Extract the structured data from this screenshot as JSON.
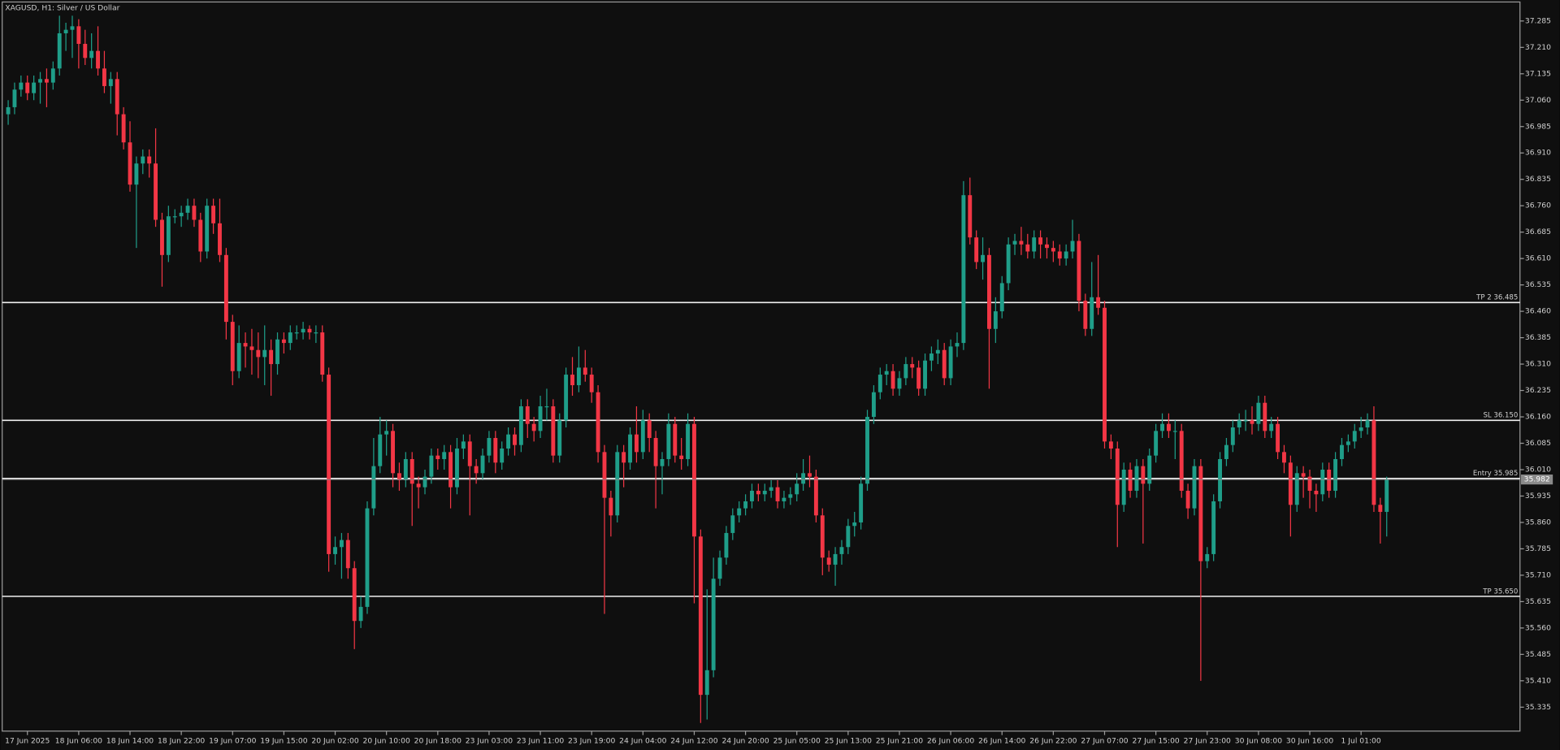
{
  "chart_data": {
    "type": "candlestick",
    "title": "XAGUSD, H1:  Silver / US Dollar",
    "up_color": "#1f9e89",
    "down_color": "#f23645",
    "categories": [
      null,
      null,
      null,
      "17 Jun 2025",
      null,
      null,
      null,
      null,
      null,
      null,
      null,
      "18 Jun 06:00",
      null,
      null,
      null,
      null,
      null,
      null,
      null,
      "18 Jun 14:00",
      null,
      null,
      null,
      null,
      null,
      null,
      null,
      "18 Jun 22:00",
      null,
      null,
      null,
      null,
      null,
      null,
      null,
      "19 Jun 07:00",
      null,
      null,
      null,
      null,
      null,
      null,
      null,
      "19 Jun 15:00",
      null,
      null,
      null,
      null,
      null,
      null,
      null,
      "20 Jun 02:00",
      null,
      null,
      null,
      null,
      null,
      null,
      null,
      "20 Jun 10:00",
      null,
      null,
      null,
      null,
      null,
      null,
      null,
      "20 Jun 18:00",
      null,
      null,
      null,
      null,
      null,
      null,
      null,
      "23 Jun 03:00",
      null,
      null,
      null,
      null,
      null,
      null,
      null,
      "23 Jun 11:00",
      null,
      null,
      null,
      null,
      null,
      null,
      null,
      "23 Jun 19:00",
      null,
      null,
      null,
      null,
      null,
      null,
      null,
      "24 Jun 04:00",
      null,
      null,
      null,
      null,
      null,
      null,
      null,
      "24 Jun 12:00",
      null,
      null,
      null,
      null,
      null,
      null,
      null,
      "24 Jun 20:00",
      null,
      null,
      null,
      null,
      null,
      null,
      null,
      "25 Jun 05:00",
      null,
      null,
      null,
      null,
      null,
      null,
      null,
      "25 Jun 13:00",
      null,
      null,
      null,
      null,
      null,
      null,
      null,
      "25 Jun 21:00",
      null,
      null,
      null,
      null,
      null,
      null,
      null,
      "26 Jun 06:00",
      null,
      null,
      null,
      null,
      null,
      null,
      null,
      "26 Jun 14:00",
      null,
      null,
      null,
      null,
      null,
      null,
      null,
      "26 Jun 22:00",
      null,
      null,
      null,
      null,
      null,
      null,
      null,
      "27 Jun 07:00",
      null,
      null,
      null,
      null,
      null,
      null,
      null,
      "27 Jun 15:00",
      null,
      null,
      null,
      null,
      null,
      null,
      null,
      "27 Jun 23:00",
      null,
      null,
      null,
      null,
      null,
      null,
      null,
      "30 Jun 08:00",
      null,
      null,
      null,
      null,
      null,
      null,
      null,
      "30 Jun 16:00",
      null,
      null,
      null,
      null,
      null,
      null,
      null,
      "1 Jul 01:00",
      null,
      null,
      null,
      null
    ],
    "open": [
      37.02,
      37.04,
      37.09,
      37.11,
      37.08,
      37.11,
      37.12,
      37.11,
      37.15,
      37.25,
      37.26,
      37.27,
      37.22,
      37.18,
      37.2,
      37.15,
      37.1,
      37.12,
      37.02,
      36.94,
      36.82,
      36.88,
      36.9,
      36.88,
      36.72,
      36.62,
      36.73,
      36.73,
      36.74,
      36.76,
      36.72,
      36.63,
      36.76,
      36.71,
      36.62,
      36.43,
      36.29,
      36.37,
      36.36,
      36.35,
      36.33,
      36.35,
      36.31,
      36.38,
      36.37,
      36.4,
      36.4,
      36.41,
      36.4,
      36.4,
      36.28,
      35.77,
      35.79,
      35.81,
      35.73,
      35.58,
      35.62,
      35.9,
      36.02,
      36.11,
      36.12,
      36.0,
      35.98,
      36.04,
      35.97,
      35.96,
      35.99,
      36.05,
      36.04,
      36.06,
      35.96,
      36.07,
      36.09,
      36.02,
      36.0,
      36.05,
      36.1,
      36.03,
      36.07,
      36.11,
      36.08,
      36.19,
      36.14,
      36.12,
      36.19,
      36.19,
      36.05,
      36.15,
      36.28,
      36.25,
      36.3,
      36.28,
      36.23,
      36.06,
      35.93,
      35.88,
      36.06,
      36.03,
      36.11,
      36.06,
      36.15,
      36.1,
      36.02,
      36.04,
      36.14,
      36.05,
      36.04,
      36.14,
      35.82,
      35.37,
      35.44,
      35.7,
      35.76,
      35.83,
      35.88,
      35.9,
      35.92,
      35.95,
      35.94,
      35.95,
      35.96,
      35.92,
      35.93,
      35.94,
      35.97,
      36.0,
      35.99,
      35.88,
      35.76,
      35.74,
      35.77,
      35.79,
      35.85,
      35.86,
      35.97,
      36.16,
      36.23,
      36.28,
      36.29,
      36.24,
      36.27,
      36.31,
      36.3,
      36.24,
      36.32,
      36.34,
      36.35,
      36.27,
      36.36,
      36.37,
      36.79,
      36.67,
      36.6,
      36.62,
      36.41,
      36.46,
      36.54,
      36.65,
      36.66,
      36.65,
      36.63,
      36.67,
      36.65,
      36.64,
      36.63,
      36.61,
      36.63,
      36.66,
      36.49,
      36.41,
      36.5,
      36.47,
      36.09,
      36.07,
      35.91,
      36.01,
      35.95,
      36.02,
      35.97,
      36.05,
      36.12,
      36.14,
      36.12,
      36.12,
      35.95,
      35.9,
      36.02,
      35.75,
      35.77,
      35.92,
      36.04,
      36.08,
      36.13,
      36.15,
      36.15,
      36.14,
      36.2,
      36.12,
      36.14,
      36.06,
      36.03,
      35.91,
      36.0,
      35.99,
      35.95,
      35.94,
      36.01,
      35.95,
      36.04,
      36.08,
      36.09,
      36.12,
      36.13,
      36.15,
      35.91,
      35.89
    ],
    "high": [
      37.06,
      37.11,
      37.13,
      37.13,
      37.13,
      37.14,
      37.15,
      37.17,
      37.3,
      37.28,
      37.3,
      37.29,
      37.26,
      37.25,
      37.27,
      37.2,
      37.14,
      37.14,
      37.04,
      37.0,
      36.9,
      36.92,
      36.92,
      36.98,
      36.74,
      36.76,
      36.75,
      36.76,
      36.78,
      36.78,
      36.74,
      36.78,
      36.78,
      36.78,
      36.64,
      36.45,
      36.42,
      36.4,
      36.41,
      36.4,
      36.42,
      36.38,
      36.4,
      36.4,
      36.42,
      36.42,
      36.43,
      36.42,
      36.42,
      36.42,
      36.3,
      35.82,
      35.83,
      35.83,
      35.75,
      35.65,
      35.92,
      36.1,
      36.16,
      36.15,
      36.14,
      36.03,
      36.06,
      36.06,
      35.99,
      36.01,
      36.07,
      36.07,
      36.08,
      36.08,
      36.1,
      36.11,
      36.11,
      36.04,
      36.07,
      36.12,
      36.12,
      36.09,
      36.13,
      36.13,
      36.21,
      36.21,
      36.16,
      36.22,
      36.24,
      36.21,
      36.17,
      36.3,
      36.33,
      36.36,
      36.35,
      36.3,
      36.25,
      36.08,
      35.95,
      36.08,
      36.08,
      36.13,
      36.19,
      36.18,
      36.17,
      36.12,
      36.06,
      36.17,
      36.16,
      36.1,
      36.17,
      36.16,
      35.84,
      35.67,
      35.76,
      35.78,
      35.85,
      35.9,
      35.92,
      35.94,
      35.97,
      35.97,
      35.97,
      35.98,
      35.98,
      35.95,
      35.96,
      36.0,
      36.04,
      36.05,
      36.01,
      35.9,
      35.78,
      35.79,
      35.81,
      35.87,
      35.89,
      35.99,
      36.18,
      36.25,
      36.3,
      36.31,
      36.31,
      36.29,
      36.33,
      36.33,
      36.32,
      36.34,
      36.36,
      36.38,
      36.37,
      36.38,
      36.4,
      36.83,
      36.84,
      36.69,
      36.67,
      36.64,
      36.5,
      36.56,
      36.67,
      36.68,
      36.7,
      36.68,
      36.69,
      36.69,
      36.67,
      36.66,
      36.65,
      36.65,
      36.72,
      36.68,
      36.51,
      36.6,
      36.62,
      36.49,
      36.11,
      36.09,
      36.03,
      36.03,
      36.04,
      36.04,
      36.07,
      36.14,
      36.17,
      36.17,
      36.15,
      36.14,
      35.97,
      36.04,
      36.04,
      35.79,
      35.94,
      36.06,
      36.1,
      36.15,
      36.17,
      36.18,
      36.19,
      36.22,
      36.22,
      36.16,
      36.16,
      36.08,
      36.05,
      36.02,
      36.02,
      36.01,
      35.97,
      36.03,
      36.03,
      36.06,
      36.1,
      36.11,
      36.14,
      36.16,
      36.17,
      36.19,
      35.93,
      35.99
    ],
    "low": [
      36.99,
      37.02,
      37.07,
      37.06,
      37.06,
      37.05,
      37.04,
      37.09,
      37.13,
      37.2,
      37.18,
      37.15,
      37.16,
      37.15,
      37.13,
      37.08,
      37.05,
      36.96,
      36.92,
      36.8,
      36.64,
      36.85,
      36.84,
      36.7,
      36.53,
      36.6,
      36.71,
      36.7,
      36.72,
      36.7,
      36.6,
      36.61,
      36.68,
      36.6,
      36.38,
      36.25,
      36.27,
      36.3,
      36.28,
      36.27,
      36.25,
      36.22,
      36.28,
      36.34,
      36.35,
      36.38,
      36.38,
      36.38,
      36.37,
      36.26,
      35.72,
      35.74,
      35.7,
      35.7,
      35.5,
      35.56,
      35.6,
      35.88,
      36.0,
      36.05,
      35.96,
      35.95,
      35.96,
      35.85,
      35.9,
      35.94,
      35.97,
      36.01,
      36.01,
      35.9,
      35.94,
      36.04,
      35.88,
      35.97,
      35.98,
      36.03,
      36.0,
      36.01,
      36.05,
      36.05,
      36.06,
      36.1,
      36.09,
      36.1,
      36.15,
      36.03,
      36.03,
      36.13,
      36.22,
      36.23,
      36.26,
      36.2,
      36.03,
      35.6,
      35.82,
      35.86,
      35.96,
      36.01,
      36.03,
      36.04,
      36.06,
      35.9,
      35.94,
      36.02,
      36.03,
      36.01,
      36.02,
      35.63,
      35.29,
      35.3,
      35.42,
      35.68,
      35.74,
      35.81,
      35.86,
      35.88,
      35.9,
      35.92,
      35.92,
      35.93,
      35.9,
      35.9,
      35.91,
      35.92,
      35.95,
      35.96,
      35.86,
      35.71,
      35.72,
      35.68,
      35.74,
      35.77,
      35.82,
      35.84,
      35.95,
      36.14,
      36.21,
      36.25,
      36.22,
      36.22,
      36.25,
      36.27,
      36.22,
      36.22,
      36.29,
      36.31,
      36.25,
      36.25,
      36.33,
      36.35,
      36.65,
      36.58,
      36.55,
      36.24,
      36.37,
      36.44,
      36.52,
      36.62,
      36.62,
      36.61,
      36.61,
      36.61,
      36.61,
      36.6,
      36.59,
      36.59,
      36.61,
      36.46,
      36.39,
      36.39,
      36.45,
      36.07,
      36.04,
      35.79,
      35.89,
      35.93,
      35.93,
      35.8,
      35.95,
      36.03,
      36.1,
      36.1,
      36.04,
      35.93,
      35.87,
      35.88,
      35.41,
      35.73,
      35.75,
      35.9,
      36.02,
      36.06,
      36.11,
      36.12,
      36.11,
      36.12,
      36.1,
      36.1,
      36.04,
      36.0,
      35.82,
      35.89,
      35.93,
      35.9,
      35.89,
      35.92,
      35.93,
      35.93,
      36.02,
      36.06,
      36.07,
      36.1,
      36.11,
      35.89,
      35.8,
      35.82
    ],
    "close": [
      37.04,
      37.09,
      37.11,
      37.08,
      37.11,
      37.12,
      37.11,
      37.15,
      37.25,
      37.26,
      37.27,
      37.22,
      37.18,
      37.2,
      37.15,
      37.1,
      37.12,
      37.02,
      36.94,
      36.82,
      36.88,
      36.9,
      36.88,
      36.72,
      36.62,
      36.73,
      36.73,
      36.74,
      36.76,
      36.72,
      36.63,
      36.76,
      36.71,
      36.62,
      36.43,
      36.29,
      36.37,
      36.36,
      36.35,
      36.33,
      36.35,
      36.31,
      36.38,
      36.37,
      36.4,
      36.4,
      36.41,
      36.4,
      36.4,
      36.28,
      35.77,
      35.79,
      35.81,
      35.73,
      35.58,
      35.62,
      35.9,
      36.02,
      36.11,
      36.12,
      36.0,
      35.98,
      36.04,
      35.97,
      35.96,
      35.99,
      36.05,
      36.04,
      36.06,
      35.96,
      36.07,
      36.09,
      36.02,
      36.0,
      36.05,
      36.1,
      36.03,
      36.07,
      36.11,
      36.08,
      36.19,
      36.14,
      36.12,
      36.19,
      36.19,
      36.05,
      36.15,
      36.28,
      36.25,
      36.3,
      36.28,
      36.23,
      36.06,
      35.93,
      35.88,
      36.06,
      36.03,
      36.11,
      36.06,
      36.15,
      36.1,
      36.02,
      36.04,
      36.14,
      36.05,
      36.04,
      36.14,
      35.82,
      35.37,
      35.44,
      35.7,
      35.76,
      35.83,
      35.88,
      35.9,
      35.92,
      35.95,
      35.94,
      35.95,
      35.96,
      35.92,
      35.93,
      35.94,
      35.97,
      36.0,
      35.99,
      35.88,
      35.76,
      35.74,
      35.77,
      35.79,
      35.85,
      35.86,
      35.97,
      36.16,
      36.23,
      36.28,
      36.29,
      36.24,
      36.27,
      36.31,
      36.3,
      36.24,
      36.32,
      36.34,
      36.35,
      36.27,
      36.36,
      36.37,
      36.79,
      36.67,
      36.6,
      36.62,
      36.41,
      36.46,
      36.54,
      36.65,
      36.66,
      36.65,
      36.63,
      36.67,
      36.65,
      36.64,
      36.63,
      36.61,
      36.63,
      36.66,
      36.49,
      36.41,
      36.5,
      36.47,
      36.09,
      36.07,
      35.91,
      36.01,
      35.95,
      36.02,
      35.97,
      36.05,
      36.12,
      36.14,
      36.12,
      36.12,
      35.95,
      35.9,
      36.02,
      35.75,
      35.77,
      35.92,
      36.04,
      36.08,
      36.13,
      36.15,
      36.15,
      36.14,
      36.2,
      36.12,
      36.14,
      36.06,
      36.03,
      35.91,
      36.0,
      35.99,
      35.95,
      35.94,
      36.01,
      35.95,
      36.04,
      36.08,
      36.09,
      36.12,
      36.13,
      36.15,
      35.91,
      35.89,
      35.982
    ],
    "ylim": [
      35.267,
      37.339
    ],
    "yticks": [
      37.285,
      {
        "value": 37.21,
        "label": "37.210"
      },
      37.135,
      {
        "value": 37.06,
        "label": "37.060"
      },
      36.985,
      {
        "value": 36.91,
        "label": "36.910"
      },
      36.835,
      {
        "value": 36.76,
        "label": "36.760"
      },
      36.685,
      {
        "value": 36.61,
        "label": "36.610"
      },
      36.535,
      {
        "value": 36.46,
        "label": "36.460"
      },
      36.385,
      {
        "value": 36.31,
        "label": "36.310"
      },
      36.235,
      {
        "value": 36.16,
        "label": "36.160"
      },
      36.085,
      {
        "value": 36.01,
        "label": "36.010"
      },
      35.935,
      {
        "value": 35.86,
        "label": "35.860"
      },
      35.785,
      {
        "value": 35.71,
        "label": "35.710"
      },
      35.635,
      {
        "value": 35.56,
        "label": "35.560"
      },
      35.485,
      {
        "value": 35.41,
        "label": "35.410"
      },
      35.335
    ],
    "levels": [
      {
        "label": "TP 2 36.485",
        "value": 36.485
      },
      {
        "label": "SL 36.150",
        "value": 36.15
      },
      {
        "label": "Entry 35.985",
        "value": 35.985
      },
      {
        "label": "TP 35.650",
        "value": 35.65
      }
    ]
  }
}
